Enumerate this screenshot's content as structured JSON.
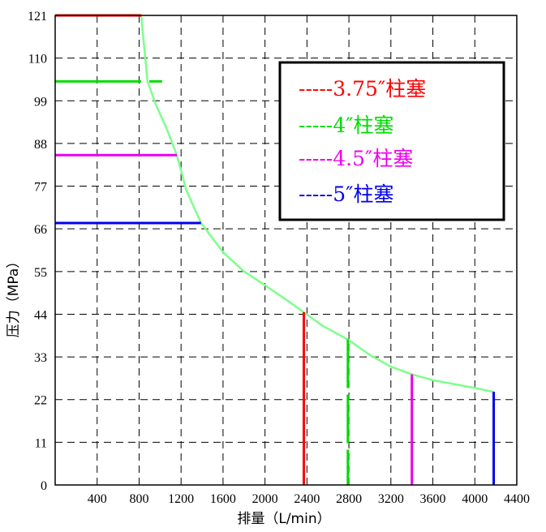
{
  "chart_data": {
    "type": "line",
    "xlabel": "排量（L/min）",
    "ylabel": "压力（MPa）",
    "xlim": [
      0,
      4400
    ],
    "ylim": [
      0,
      121
    ],
    "x_ticks": [
      "400",
      "800",
      "1200",
      "1600",
      "2000",
      "2400",
      "2800",
      "3200",
      "3600",
      "4000",
      "4400"
    ],
    "y_ticks": [
      "0",
      "11",
      "22",
      "33",
      "44",
      "55",
      "66",
      "77",
      "88",
      "99",
      "110",
      "121"
    ],
    "x_tick_values": [
      400,
      800,
      1200,
      1600,
      2000,
      2400,
      2800,
      3200,
      3600,
      4000,
      4400
    ],
    "y_tick_values": [
      0,
      11,
      22,
      33,
      44,
      55,
      66,
      77,
      88,
      99,
      110,
      121
    ],
    "grid": true,
    "legend_position": "top-right",
    "legend": [
      {
        "label": "-----3.75″柱塞",
        "color": "#ff0000"
      },
      {
        "label": "-----4″柱塞",
        "color": "#00dd00"
      },
      {
        "label": "-----4.5″柱塞",
        "color": "#ee00ee"
      },
      {
        "label": "-----5″柱塞",
        "color": "#0000ee"
      }
    ],
    "series": [
      {
        "color": "#ff0000",
        "points": [
          [
            0,
            121
          ],
          [
            820,
            121
          ],
          [
            820,
            121
          ],
          [
            2370,
            44.5
          ],
          [
            2370,
            0
          ]
        ]
      },
      {
        "color": "#00dd00",
        "points": [
          [
            0,
            104
          ],
          [
            820,
            104
          ],
          [
            880,
            104
          ],
          [
            2790,
            37.5
          ],
          [
            2790,
            0
          ]
        ]
      },
      {
        "color": "#ee00ee",
        "points": [
          [
            0,
            85
          ],
          [
            1160,
            85
          ],
          [
            1160,
            85
          ],
          [
            3400,
            28.5
          ],
          [
            3400,
            0
          ]
        ]
      },
      {
        "color": "#0000ee",
        "points": [
          [
            0,
            67.5
          ],
          [
            1390,
            67.5
          ],
          [
            1390,
            67.5
          ],
          [
            4180,
            24
          ],
          [
            4180,
            0
          ]
        ]
      }
    ],
    "envelope": {
      "color": "#7dff8c",
      "points": [
        [
          820,
          121
        ],
        [
          880,
          104
        ],
        [
          960,
          98
        ],
        [
          1060,
          92
        ],
        [
          1160,
          85
        ],
        [
          1250,
          76
        ],
        [
          1390,
          67.5
        ],
        [
          1600,
          60
        ],
        [
          1800,
          55
        ],
        [
          2000,
          51.5
        ],
        [
          2200,
          47.8
        ],
        [
          2370,
          44.5
        ],
        [
          2550,
          41
        ],
        [
          2790,
          37.5
        ],
        [
          3000,
          33.5
        ],
        [
          3200,
          30.5
        ],
        [
          3400,
          28.5
        ],
        [
          3600,
          27
        ],
        [
          3800,
          26
        ],
        [
          4000,
          25
        ],
        [
          4180,
          24
        ]
      ]
    }
  }
}
